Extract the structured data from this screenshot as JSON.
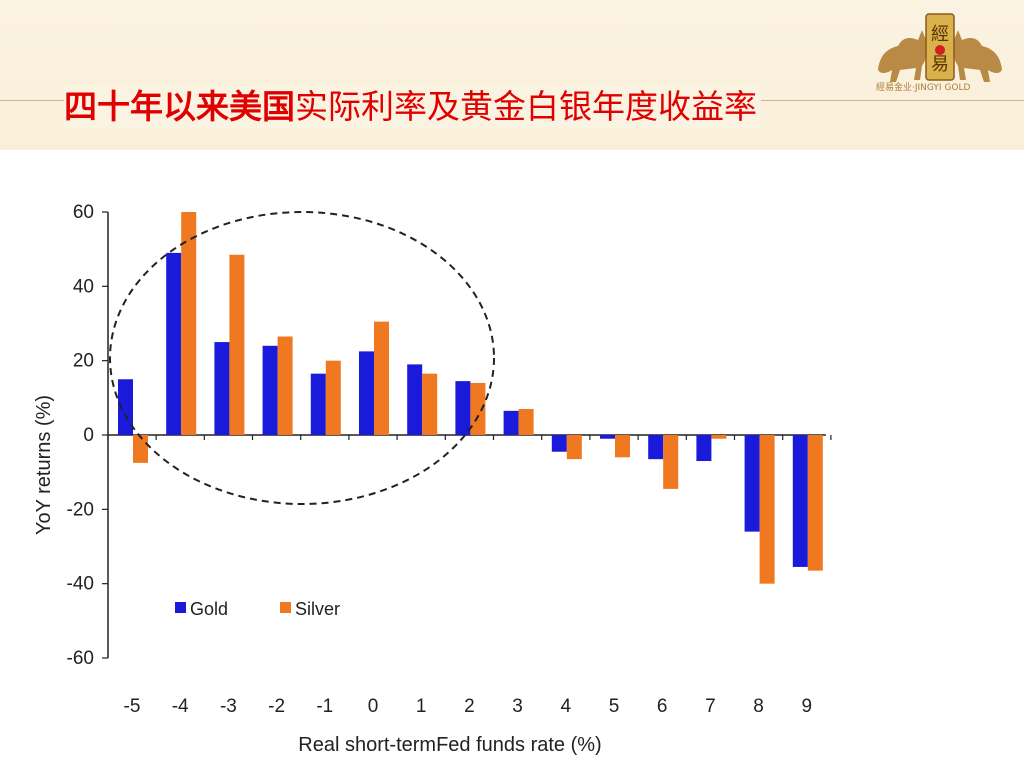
{
  "header": {
    "title_bold": "四十年以来美国",
    "title_rest": "实际利率及黄金白银年度收益率",
    "logo_seal": "經易",
    "logo_text": "經易金业·JINGYI GOLD",
    "colors": {
      "title": "#e00000",
      "banner": "#fbf3e2",
      "logo": "#b07d3a"
    }
  },
  "chart_data": {
    "type": "bar",
    "categories": [
      "-5",
      "-4",
      "-3",
      "-2",
      "-1",
      "0",
      "1",
      "2",
      "3",
      "4",
      "5",
      "6",
      "7",
      "8",
      "9"
    ],
    "series": [
      {
        "name": "Gold",
        "color": "#1a1adb",
        "values": [
          15,
          49,
          25,
          24,
          16.5,
          22.5,
          19,
          14.5,
          6.5,
          -4.5,
          -1,
          -6.5,
          -7,
          -26,
          -35.5
        ]
      },
      {
        "name": "Silver",
        "color": "#f07820",
        "values": [
          -7.5,
          60,
          48.5,
          26.5,
          20,
          30.5,
          16.5,
          14,
          7,
          -6.5,
          -6,
          -14.5,
          -1,
          -40,
          -36.5
        ]
      }
    ],
    "xlabel": "Real short-termFed funds rate (%)",
    "ylabel": "YoY returns (%)",
    "ylim": [
      -60,
      60
    ],
    "yticks": [
      60,
      40,
      20,
      0,
      -20,
      -40,
      -60
    ],
    "legend_position": "lower-left",
    "annotation": "dashed ellipse around categories -5 to 2",
    "grid": false
  }
}
